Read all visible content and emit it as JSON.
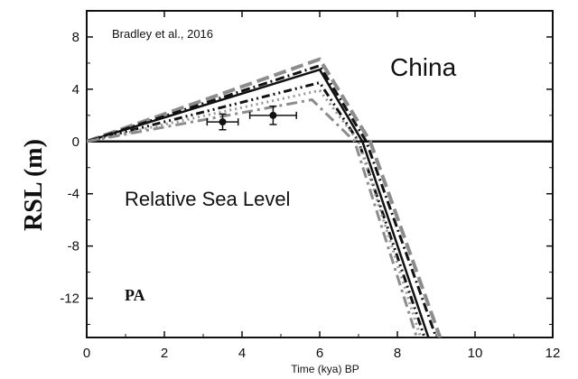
{
  "chart_data": {
    "type": "line",
    "title": "",
    "xlabel": "Time (kya) BP",
    "ylabel": "RSL (m)",
    "xlim": [
      0,
      12
    ],
    "ylim": [
      -15,
      10
    ],
    "xticks": [
      0,
      2,
      4,
      6,
      8,
      10,
      12
    ],
    "yticks": [
      8,
      4,
      0,
      -4,
      -8,
      -12
    ],
    "annotations": {
      "source": "Bradley et al., 2016",
      "region": "China",
      "caption": "Relative Sea Level",
      "panel": "PA"
    },
    "series": [
      {
        "values": [
          [
            0,
            0
          ],
          [
            6.0,
            6.3
          ],
          [
            7.3,
            0
          ],
          [
            9.1,
            -15
          ]
        ],
        "color": "#8c8c8c",
        "dash": "14 6",
        "width": 4
      },
      {
        "values": [
          [
            0,
            0
          ],
          [
            6.0,
            5.8
          ],
          [
            7.2,
            0
          ],
          [
            9.0,
            -15
          ]
        ],
        "color": "#111111",
        "dash": "10 4 2 4",
        "width": 3
      },
      {
        "values": [
          [
            0,
            0
          ],
          [
            6.0,
            5.5
          ],
          [
            7.1,
            0
          ],
          [
            8.8,
            -15
          ]
        ],
        "color": "#111111",
        "dash": "",
        "width": 2.5
      },
      {
        "values": [
          [
            0,
            0
          ],
          [
            6.0,
            4.5
          ],
          [
            7.0,
            0
          ],
          [
            8.7,
            -15
          ]
        ],
        "color": "#111111",
        "dash": "9 4 2 4 2 4",
        "width": 3
      },
      {
        "values": [
          [
            0,
            0
          ],
          [
            6.0,
            3.9
          ],
          [
            7.0,
            0
          ],
          [
            8.6,
            -15
          ]
        ],
        "color": "#9a9a9a",
        "dash": "2 4",
        "width": 3
      },
      {
        "values": [
          [
            0,
            0
          ],
          [
            5.8,
            3.2
          ],
          [
            6.9,
            0
          ],
          [
            8.5,
            -15
          ]
        ],
        "color": "#8c8c8c",
        "dash": "12 5 3 5",
        "width": 3
      }
    ],
    "observations": [
      {
        "x": 3.5,
        "y": 1.5,
        "xerr": 0.4,
        "yerr": 0.6
      },
      {
        "x": 4.8,
        "y": 2.0,
        "xerr": 0.6,
        "yerr": 0.7
      }
    ],
    "zero_line": true,
    "grid": false
  }
}
